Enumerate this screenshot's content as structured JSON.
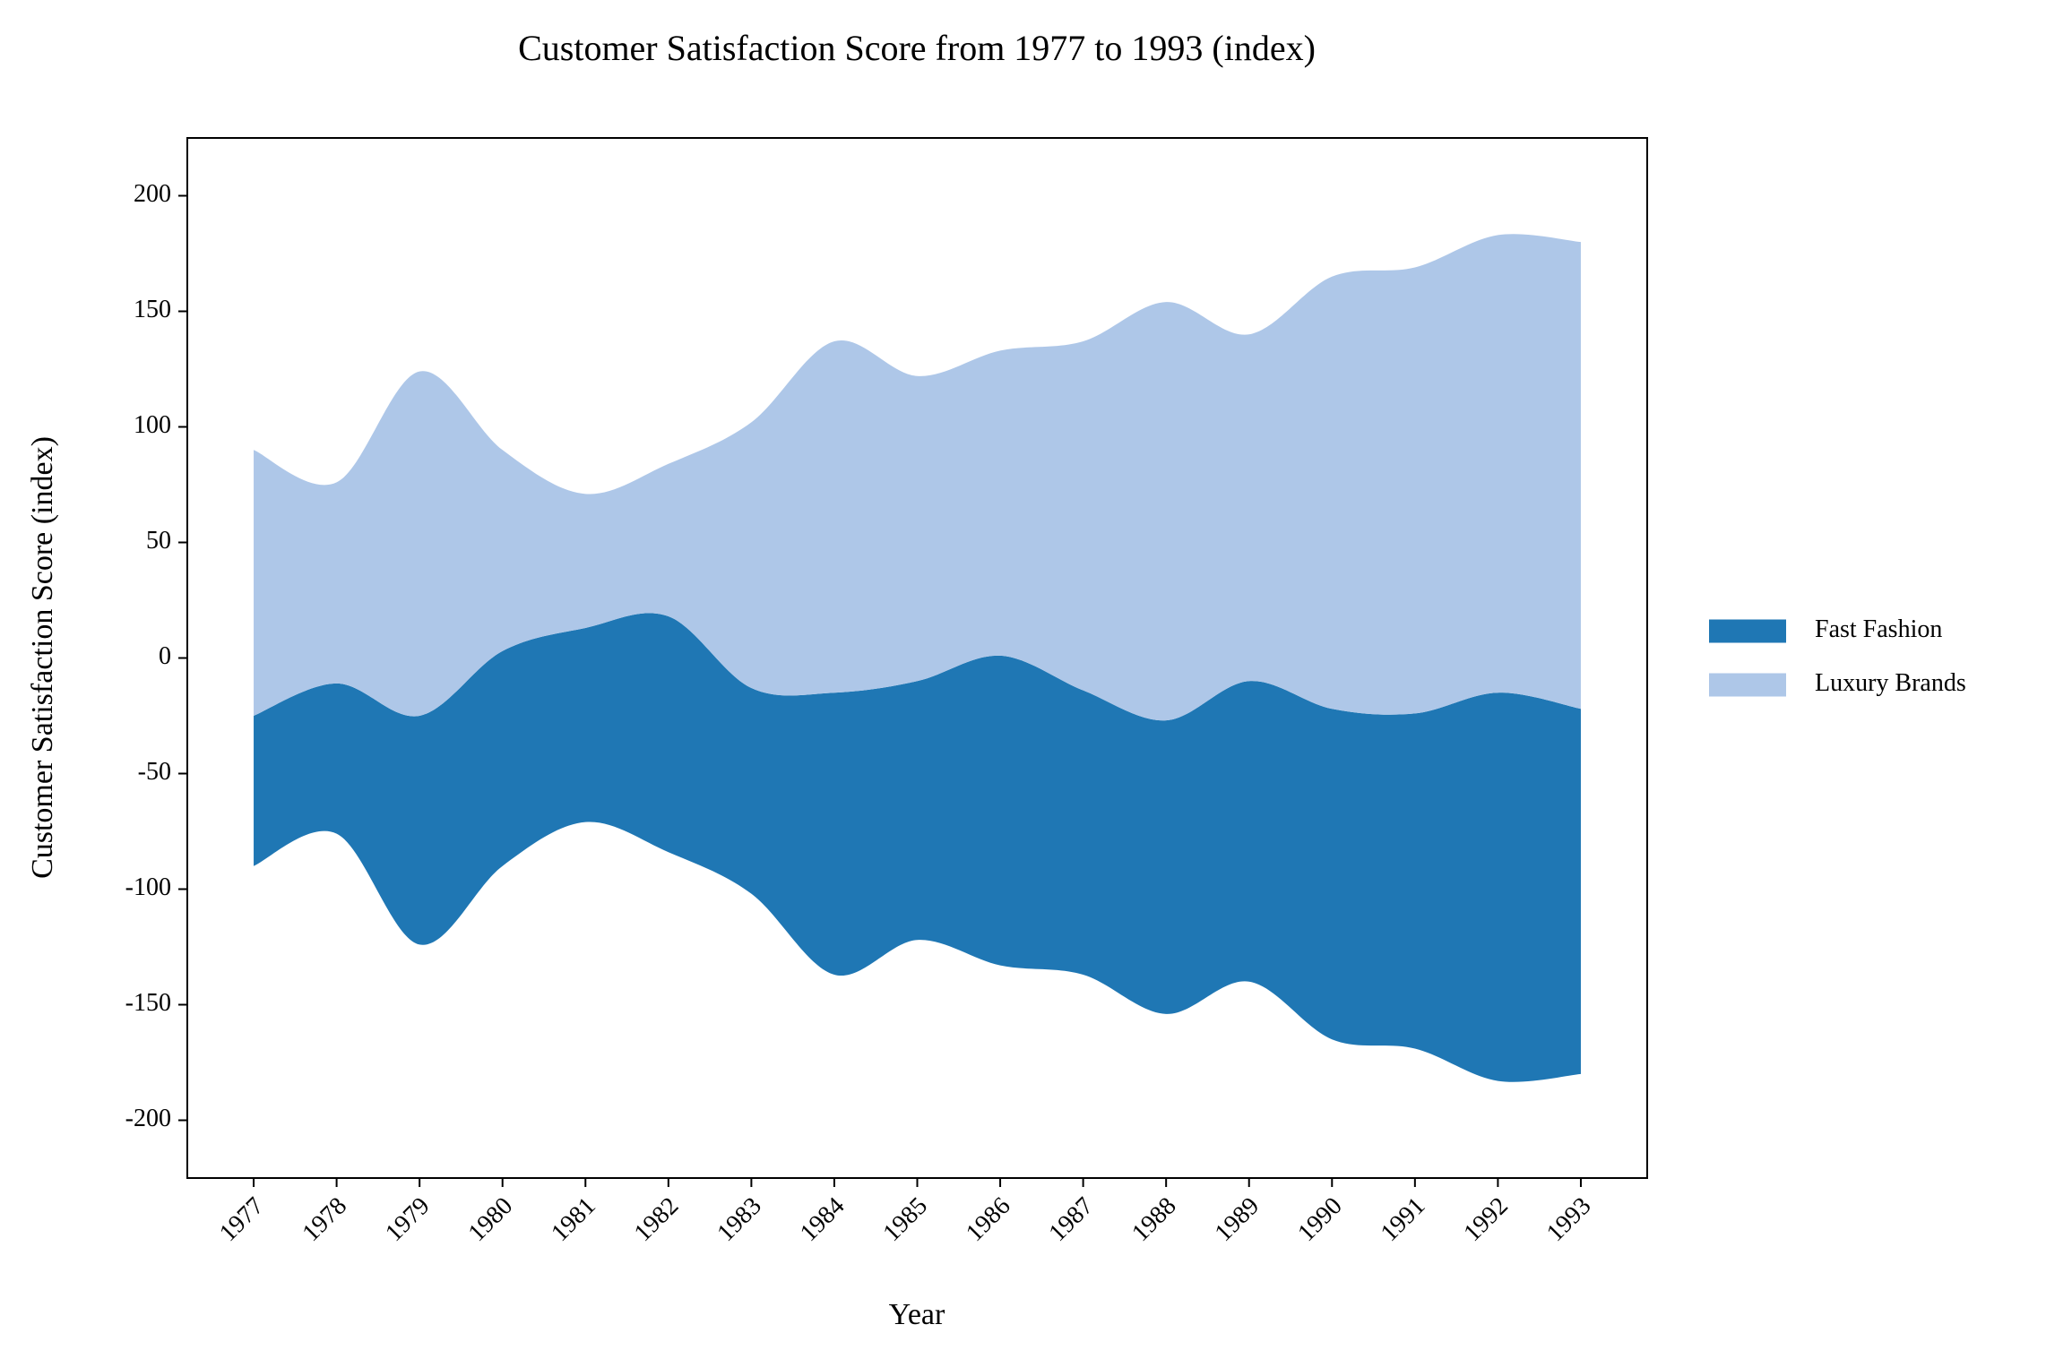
{
  "chart_data": {
    "type": "stream",
    "title": "Customer Satisfaction Score from 1977 to 1993 (index)",
    "x_label": "Year",
    "y_label": "Customer Satisfaction Score (index)",
    "x": [
      1977,
      1978,
      1979,
      1980,
      1981,
      1982,
      1983,
      1984,
      1985,
      1986,
      1987,
      1988,
      1989,
      1990,
      1991,
      1992,
      1993
    ],
    "series": [
      {
        "name": "Fast Fashion",
        "color": "#1f77b4",
        "values": [
          65,
          65,
          99,
          93,
          84,
          102,
          89,
          122,
          112,
          134,
          123,
          127,
          130,
          143,
          145,
          168,
          158
        ]
      },
      {
        "name": "Luxury Brands",
        "color": "#aec7e8",
        "values": [
          115,
          87,
          149,
          87,
          58,
          66,
          115,
          152,
          132,
          132,
          151,
          181,
          150,
          187,
          193,
          198,
          202
        ]
      }
    ],
    "xlim": [
      1976.2,
      1993.8
    ],
    "xticks": [
      1977,
      1978,
      1979,
      1980,
      1981,
      1982,
      1983,
      1984,
      1985,
      1986,
      1987,
      1988,
      1989,
      1990,
      1991,
      1992,
      1993
    ],
    "ylim": [
      -225,
      225
    ],
    "yticks": [
      -200,
      -150,
      -100,
      -50,
      0,
      50,
      100,
      150,
      200
    ],
    "legend": "right"
  }
}
